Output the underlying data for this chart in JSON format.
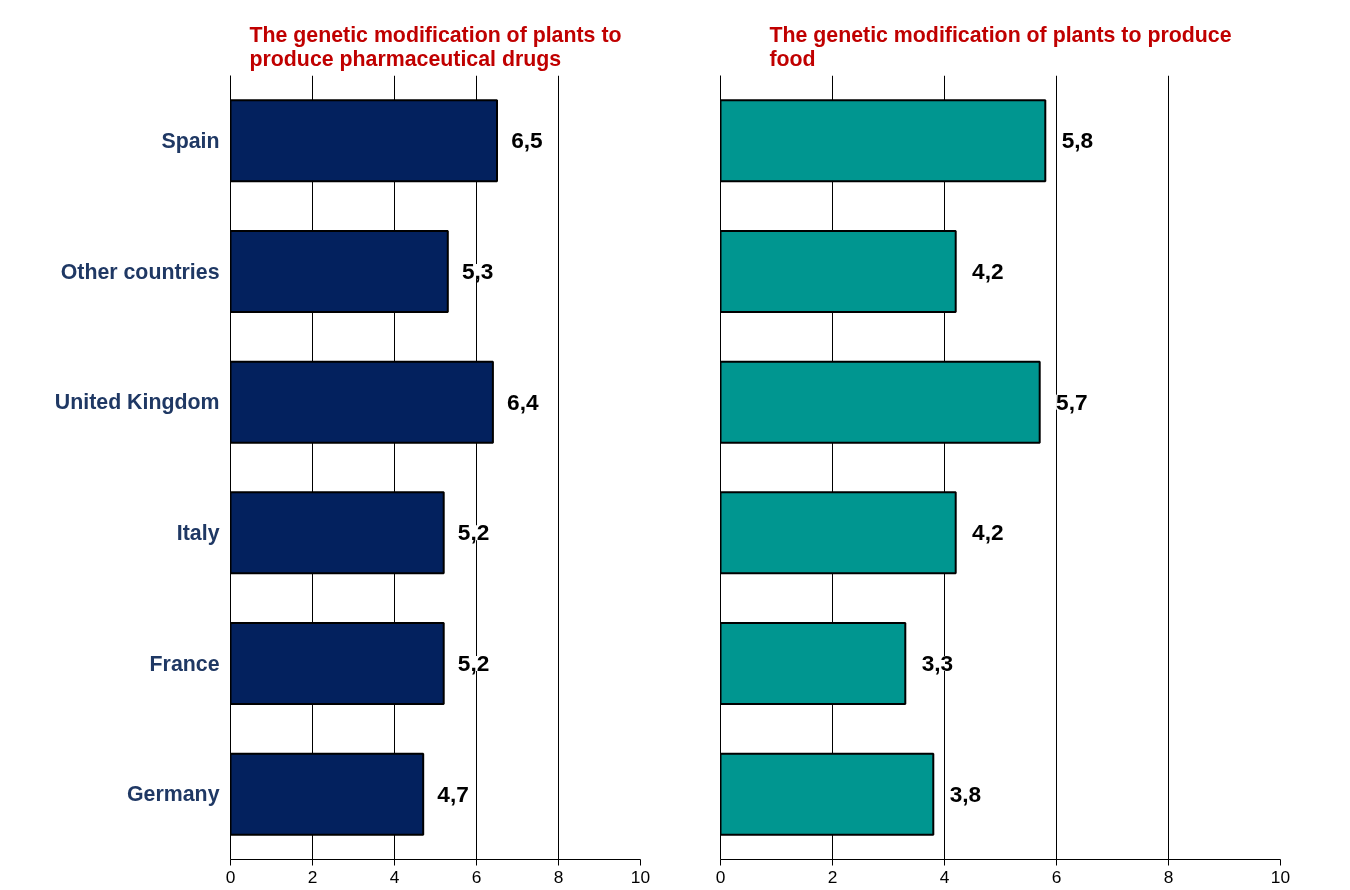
{
  "chart_data": [
    {
      "type": "bar",
      "orientation": "horizontal",
      "title": "The genetic modification of plants to\nproduce pharmaceutical drugs",
      "categories": [
        "Spain",
        "Other countries",
        "United Kingdom",
        "Italy",
        "France",
        "Germany"
      ],
      "values": [
        6.5,
        5.3,
        6.4,
        5.2,
        5.2,
        4.7
      ],
      "value_labels": [
        "6,5",
        "5,3",
        "6,4",
        "5,2",
        "5,2",
        "4,7"
      ],
      "color": "#03215e",
      "xlim": [
        0,
        10
      ],
      "xticks": [
        0,
        2,
        4,
        6,
        8,
        10
      ],
      "grid": "x"
    },
    {
      "type": "bar",
      "orientation": "horizontal",
      "title": "The genetic modification of plants to produce\nfood",
      "categories": [
        null,
        null,
        null,
        null,
        null,
        null
      ],
      "values": [
        5.8,
        4.2,
        5.7,
        4.2,
        3.3,
        3.8
      ],
      "value_labels": [
        "5,8",
        "4,2",
        "5,7",
        "4,2",
        "3,3",
        "3,8"
      ],
      "color": "#009690",
      "xlim": [
        0,
        10
      ],
      "xticks": [
        0,
        2,
        4,
        6,
        8,
        10
      ],
      "grid": "x",
      "tick_labels": "x"
    }
  ]
}
